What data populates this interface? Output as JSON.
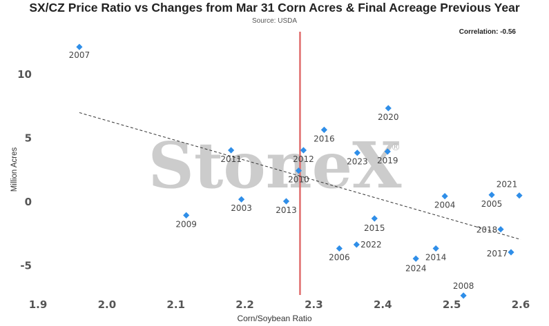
{
  "title": "SX/CZ Price Ratio vs Changes from Mar 31 Corn Acres & Final Acreage Previous Year",
  "subtitle": "Source: USDA",
  "correlation": "Correlation: -0.56",
  "watermark": "StoneX",
  "watermark_mark": "®",
  "colors": {
    "points": "#2f8ee8",
    "vline": "#e06c6c",
    "trend": "#333333"
  },
  "chart_data": {
    "type": "scatter",
    "xlabel": "Corn/Soybean Ratio",
    "ylabel": "Million Acres",
    "xlim": [
      1.9,
      2.6
    ],
    "ylim": [
      -8,
      14
    ],
    "xticks": [
      "1.9",
      "2.0",
      "2.1",
      "2.2",
      "2.3",
      "2.4",
      "2.5",
      "2.6"
    ],
    "yticks": [
      "10",
      "5",
      "0",
      "-5"
    ],
    "reference_line_x": 2.28,
    "trendline": {
      "x": [
        1.96,
        2.6
      ],
      "y": [
        6.95,
        -3.0
      ]
    },
    "points": [
      {
        "label": "2007",
        "x": 1.96,
        "y": 12.1
      },
      {
        "label": "2009",
        "x": 2.115,
        "y": -1.1
      },
      {
        "label": "2011",
        "x": 2.18,
        "y": 4.0
      },
      {
        "label": "2003",
        "x": 2.195,
        "y": 0.15
      },
      {
        "label": "2013",
        "x": 2.26,
        "y": 0.0
      },
      {
        "label": "2010",
        "x": 2.278,
        "y": 2.4
      },
      {
        "label": "2012",
        "x": 2.285,
        "y": 4.0
      },
      {
        "label": "2016",
        "x": 2.315,
        "y": 5.6
      },
      {
        "label": "2006",
        "x": 2.337,
        "y": -3.7
      },
      {
        "label": "2023",
        "x": 2.363,
        "y": 3.8
      },
      {
        "label": "2022",
        "x": 2.362,
        "y": -3.4
      },
      {
        "label": "2015",
        "x": 2.388,
        "y": -1.35
      },
      {
        "label": "2020",
        "x": 2.408,
        "y": 7.3
      },
      {
        "label": "2019",
        "x": 2.407,
        "y": 3.9
      },
      {
        "label": "2024",
        "x": 2.448,
        "y": -4.5
      },
      {
        "label": "2014",
        "x": 2.477,
        "y": -3.7
      },
      {
        "label": "2004",
        "x": 2.49,
        "y": 0.4
      },
      {
        "label": "2008",
        "x": 2.517,
        "y": -7.4
      },
      {
        "label": "2005",
        "x": 2.558,
        "y": 0.5
      },
      {
        "label": "2018",
        "x": 2.571,
        "y": -2.2
      },
      {
        "label": "2021",
        "x": 2.598,
        "y": 0.45
      },
      {
        "label": "2017",
        "x": 2.586,
        "y": -4.0
      }
    ]
  }
}
